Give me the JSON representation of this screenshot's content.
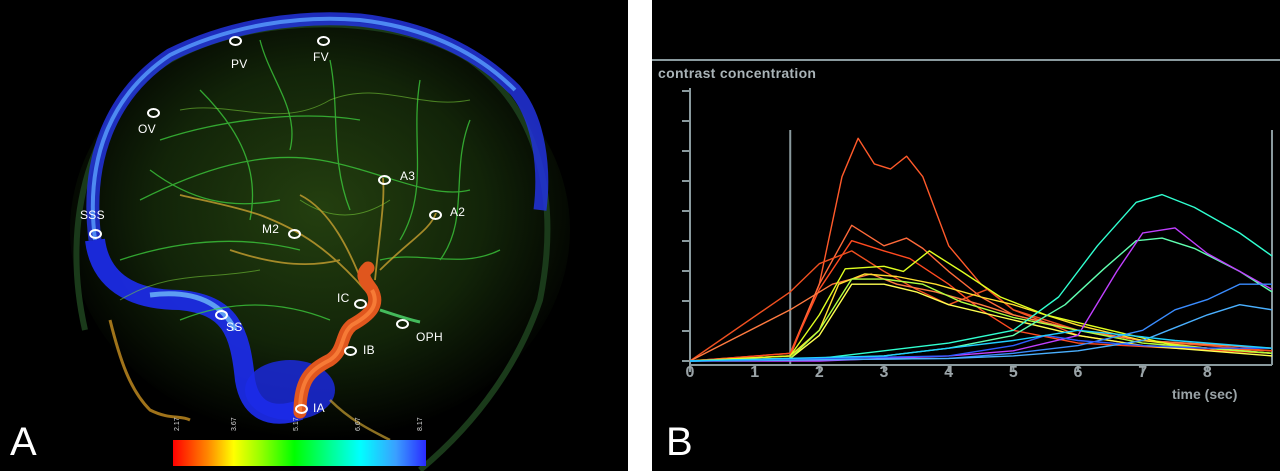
{
  "panels": {
    "a": {
      "letter": "A",
      "rois": [
        {
          "id": "pv",
          "label": "PV"
        },
        {
          "id": "fv",
          "label": "FV"
        },
        {
          "id": "ov",
          "label": "OV"
        },
        {
          "id": "a3",
          "label": "A3"
        },
        {
          "id": "a2",
          "label": "A2"
        },
        {
          "id": "sss",
          "label": "SSS"
        },
        {
          "id": "m2",
          "label": "M2"
        },
        {
          "id": "ic",
          "label": "IC"
        },
        {
          "id": "ss",
          "label": "SS"
        },
        {
          "id": "oph",
          "label": "OPH"
        },
        {
          "id": "ib",
          "label": "IB"
        },
        {
          "id": "ia",
          "label": "IA"
        }
      ],
      "colorbar": {
        "ticks": [
          "2.17",
          "3.67",
          "5.17",
          "6.67",
          "8.17"
        ],
        "colors": [
          "#ff0000",
          "#ffff00",
          "#00ff00",
          "#00ffff",
          "#2a2aff"
        ]
      }
    },
    "b": {
      "letter": "B"
    }
  },
  "chart_data": {
    "type": "line",
    "ylabel": "contrast concentration",
    "xlabel": "time (sec)",
    "xlim": [
      0,
      9
    ],
    "xticks": [
      "0",
      "1",
      "2",
      "3",
      "4",
      "5",
      "6",
      "7",
      "8"
    ],
    "vertical_markers": [
      1.55,
      9.0
    ],
    "series": [
      {
        "color": "#ff5a2a",
        "points": [
          [
            0,
            0
          ],
          [
            1.55,
            0.02
          ],
          [
            2.0,
            0.3
          ],
          [
            2.35,
            0.72
          ],
          [
            2.6,
            0.87
          ],
          [
            2.85,
            0.77
          ],
          [
            3.1,
            0.75
          ],
          [
            3.35,
            0.8
          ],
          [
            3.6,
            0.72
          ],
          [
            4.0,
            0.45
          ],
          [
            4.5,
            0.3
          ],
          [
            5.0,
            0.2
          ],
          [
            6.0,
            0.1
          ],
          [
            7.0,
            0.06
          ],
          [
            9.0,
            0.04
          ]
        ]
      },
      {
        "color": "#ff6a3a",
        "points": [
          [
            0,
            0
          ],
          [
            1.55,
            0.03
          ],
          [
            2.0,
            0.3
          ],
          [
            2.5,
            0.53
          ],
          [
            3.0,
            0.45
          ],
          [
            3.35,
            0.48
          ],
          [
            3.6,
            0.44
          ],
          [
            4.0,
            0.35
          ],
          [
            4.5,
            0.25
          ],
          [
            5.0,
            0.18
          ],
          [
            6.0,
            0.12
          ],
          [
            7.0,
            0.08
          ],
          [
            9.0,
            0.05
          ]
        ]
      },
      {
        "color": "#ff4a20",
        "points": [
          [
            0,
            0
          ],
          [
            1.55,
            0.03
          ],
          [
            2.0,
            0.28
          ],
          [
            2.5,
            0.47
          ],
          [
            3.0,
            0.43
          ],
          [
            3.4,
            0.4
          ],
          [
            4.0,
            0.3
          ],
          [
            4.5,
            0.2
          ],
          [
            5.0,
            0.12
          ],
          [
            6.0,
            0.07
          ],
          [
            9.0,
            0.03
          ]
        ]
      },
      {
        "color": "#f05020",
        "points": [
          [
            0,
            0
          ],
          [
            1.55,
            0.27
          ],
          [
            2.0,
            0.38
          ],
          [
            2.5,
            0.43
          ],
          [
            3.0,
            0.35
          ],
          [
            3.5,
            0.28
          ],
          [
            4.0,
            0.22
          ],
          [
            4.6,
            0.28
          ],
          [
            5.0,
            0.2
          ],
          [
            6.0,
            0.12
          ],
          [
            7.0,
            0.08
          ],
          [
            9.0,
            0.04
          ]
        ]
      },
      {
        "color": "#ff7a40",
        "points": [
          [
            0,
            0
          ],
          [
            1.55,
            0.2
          ],
          [
            2.2,
            0.3
          ],
          [
            2.8,
            0.34
          ],
          [
            3.2,
            0.3
          ],
          [
            3.8,
            0.27
          ],
          [
            4.5,
            0.22
          ],
          [
            5.0,
            0.18
          ],
          [
            6.0,
            0.12
          ],
          [
            7.0,
            0.08
          ],
          [
            9.0,
            0.05
          ]
        ]
      },
      {
        "color": "#ffe030",
        "points": [
          [
            0,
            0
          ],
          [
            1.55,
            0.02
          ],
          [
            2.0,
            0.12
          ],
          [
            2.3,
            0.3
          ],
          [
            2.7,
            0.34
          ],
          [
            3.2,
            0.33
          ],
          [
            3.8,
            0.3
          ],
          [
            4.5,
            0.25
          ],
          [
            5.0,
            0.22
          ],
          [
            6.0,
            0.14
          ],
          [
            7.0,
            0.08
          ],
          [
            8.0,
            0.05
          ],
          [
            9.0,
            0.03
          ]
        ]
      },
      {
        "color": "#e0ff20",
        "points": [
          [
            0,
            0
          ],
          [
            1.55,
            0.02
          ],
          [
            2.0,
            0.18
          ],
          [
            2.4,
            0.36
          ],
          [
            3.0,
            0.37
          ],
          [
            3.3,
            0.35
          ],
          [
            3.7,
            0.43
          ],
          [
            4.2,
            0.35
          ],
          [
            4.8,
            0.25
          ],
          [
            5.5,
            0.18
          ],
          [
            6.5,
            0.12
          ],
          [
            7.5,
            0.06
          ],
          [
            9.0,
            0.03
          ]
        ]
      },
      {
        "color": "#ffff50",
        "points": [
          [
            0,
            0
          ],
          [
            1.55,
            0.01
          ],
          [
            2.0,
            0.1
          ],
          [
            2.5,
            0.3
          ],
          [
            3.0,
            0.3
          ],
          [
            3.5,
            0.27
          ],
          [
            4.0,
            0.22
          ],
          [
            5.0,
            0.16
          ],
          [
            6.0,
            0.1
          ],
          [
            7.0,
            0.06
          ],
          [
            9.0,
            0.02
          ]
        ]
      },
      {
        "color": "#b0ff40",
        "points": [
          [
            0,
            0
          ],
          [
            1.55,
            0.01
          ],
          [
            2.0,
            0.12
          ],
          [
            2.5,
            0.32
          ],
          [
            3.0,
            0.32
          ],
          [
            3.6,
            0.3
          ],
          [
            4.2,
            0.23
          ],
          [
            5.0,
            0.17
          ],
          [
            6.0,
            0.12
          ],
          [
            7.0,
            0.07
          ],
          [
            9.0,
            0.03
          ]
        ]
      },
      {
        "color": "#30ffd0",
        "points": [
          [
            0,
            0
          ],
          [
            2.0,
            0.01
          ],
          [
            3.0,
            0.04
          ],
          [
            4.0,
            0.07
          ],
          [
            5.0,
            0.12
          ],
          [
            5.7,
            0.25
          ],
          [
            6.3,
            0.45
          ],
          [
            6.9,
            0.62
          ],
          [
            7.3,
            0.65
          ],
          [
            7.8,
            0.6
          ],
          [
            8.5,
            0.5
          ],
          [
            9.0,
            0.41
          ]
        ]
      },
      {
        "color": "#60ffb0",
        "points": [
          [
            0,
            0
          ],
          [
            2.0,
            0.01
          ],
          [
            3.0,
            0.02
          ],
          [
            4.0,
            0.05
          ],
          [
            5.0,
            0.1
          ],
          [
            5.8,
            0.22
          ],
          [
            6.4,
            0.36
          ],
          [
            6.9,
            0.47
          ],
          [
            7.3,
            0.48
          ],
          [
            7.8,
            0.44
          ],
          [
            8.5,
            0.35
          ],
          [
            9.0,
            0.27
          ]
        ]
      },
      {
        "color": "#c040ff",
        "points": [
          [
            0,
            0
          ],
          [
            2.0,
            0.0
          ],
          [
            4.0,
            0.02
          ],
          [
            5.0,
            0.04
          ],
          [
            6.0,
            0.1
          ],
          [
            6.6,
            0.35
          ],
          [
            7.0,
            0.5
          ],
          [
            7.5,
            0.52
          ],
          [
            8.0,
            0.42
          ],
          [
            8.5,
            0.35
          ],
          [
            9.0,
            0.28
          ]
        ]
      },
      {
        "color": "#3a8cff",
        "points": [
          [
            0,
            0
          ],
          [
            4.0,
            0.01
          ],
          [
            5.0,
            0.03
          ],
          [
            6.0,
            0.06
          ],
          [
            7.0,
            0.12
          ],
          [
            7.5,
            0.2
          ],
          [
            8.0,
            0.24
          ],
          [
            8.5,
            0.3
          ],
          [
            9.0,
            0.3
          ]
        ]
      },
      {
        "color": "#4ab0ff",
        "points": [
          [
            0,
            0
          ],
          [
            4.0,
            0.01
          ],
          [
            5.0,
            0.02
          ],
          [
            6.0,
            0.04
          ],
          [
            7.0,
            0.08
          ],
          [
            7.5,
            0.13
          ],
          [
            8.0,
            0.18
          ],
          [
            8.5,
            0.22
          ],
          [
            9.0,
            0.2
          ]
        ]
      },
      {
        "color": "#2f5cff",
        "points": [
          [
            0,
            0
          ],
          [
            4.0,
            0.02
          ],
          [
            5.0,
            0.06
          ],
          [
            5.5,
            0.1
          ],
          [
            6.0,
            0.08
          ],
          [
            7.0,
            0.06
          ],
          [
            8.0,
            0.05
          ],
          [
            9.0,
            0.05
          ]
        ]
      },
      {
        "color": "#20d0ff",
        "points": [
          [
            0,
            0
          ],
          [
            3.0,
            0.02
          ],
          [
            4.0,
            0.05
          ],
          [
            5.0,
            0.08
          ],
          [
            6.0,
            0.12
          ],
          [
            6.8,
            0.1
          ],
          [
            7.5,
            0.08
          ],
          [
            9.0,
            0.05
          ]
        ]
      }
    ]
  }
}
